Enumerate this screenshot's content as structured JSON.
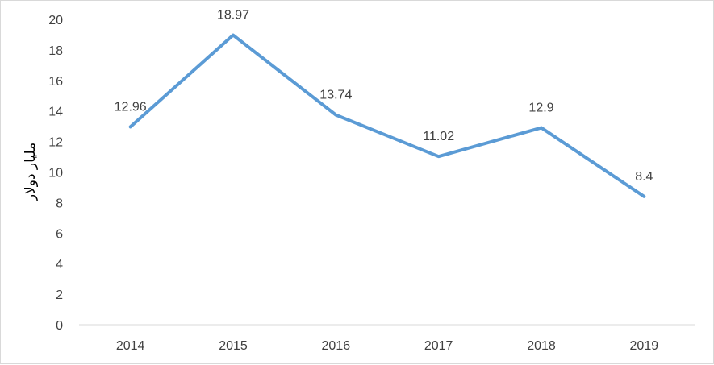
{
  "chart_data": {
    "type": "line",
    "title": "",
    "xlabel": "",
    "ylabel": "مليار دولار",
    "categories": [
      "2014",
      "2015",
      "2016",
      "2017",
      "2018",
      "2019"
    ],
    "series": [
      {
        "values": [
          12.96,
          18.97,
          13.74,
          11.02,
          12.9,
          8.4
        ],
        "labels": [
          "12.96",
          "18.97",
          "13.74",
          "11.02",
          "12.9",
          "8.4"
        ]
      }
    ],
    "ylim": [
      0,
      20
    ],
    "yticks": [
      "0",
      "2",
      "4",
      "6",
      "8",
      "10",
      "12",
      "14",
      "16",
      "18",
      "20"
    ],
    "grid": false,
    "legend": "none",
    "line_color": "#5b9bd5",
    "text_color": "#404040",
    "axis_color": "#d9d9d9"
  }
}
